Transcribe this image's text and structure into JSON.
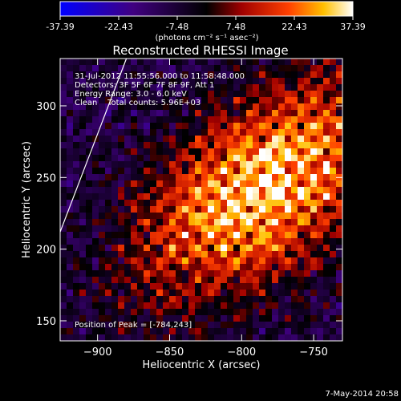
{
  "colorbar": {
    "tick_labels": [
      "-37.39",
      "-22.43",
      "-7.48",
      "7.48",
      "22.43",
      "37.39"
    ],
    "range": [
      -37.39,
      37.39
    ],
    "units": "(photons cm⁻² s⁻¹ asec⁻²)"
  },
  "chart_data": {
    "type": "heatmap",
    "title": "Reconstructed RHESSI Image",
    "xlabel": "Heliocentric X (arcsec)",
    "ylabel": "Heliocentric Y (arcsec)",
    "xlim": [
      -926,
      -730
    ],
    "ylim": [
      136,
      333
    ],
    "x_ticks": [
      -900,
      -850,
      -800,
      -750
    ],
    "y_ticks": [
      150,
      200,
      250,
      300
    ],
    "x_tick_labels": [
      "−900",
      "−850",
      "−800",
      "−750"
    ],
    "y_tick_labels": [
      "150",
      "200",
      "250",
      "300"
    ],
    "annotations": [
      "31-Jul-2012 11:55:56.000 to 11:58:48.000",
      "Detectors: 3F 5F 6F 7F 8F 9F, Att 1",
      "Energy Range: 3.0 - 6.0 keV",
      "Clean    Total counts: 5.96E+03"
    ],
    "peak_label": "Position of Peak = [-784,243]",
    "peak": {
      "x": -784,
      "y": 243,
      "value": 37.39
    },
    "colormap": [
      "#0000ff",
      "#400080",
      "#000000",
      "#a00000",
      "#ff5000",
      "#ffc000",
      "#ffffff"
    ],
    "limb_line": [
      [
        -926,
        212
      ],
      [
        -880,
        333
      ]
    ]
  },
  "timestamp": "7-May-2014 20:58"
}
